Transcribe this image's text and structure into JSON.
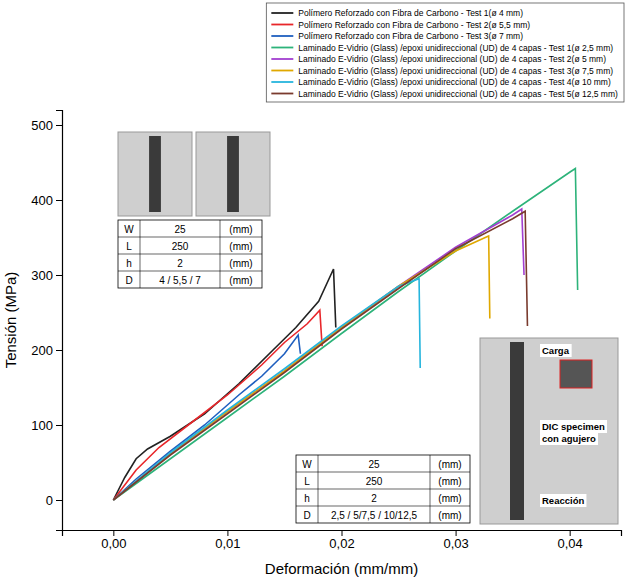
{
  "chart_data": {
    "type": "line",
    "x_label": "Deformación (mm/mm)",
    "y_label": "Tensión (MPa)",
    "xlim": [
      -0.0045,
      0.0445
    ],
    "ylim": [
      -40,
      520
    ],
    "xticks": [
      {
        "value": 0,
        "label": "0,00"
      },
      {
        "value": 0.01,
        "label": "0,01"
      },
      {
        "value": 0.02,
        "label": "0,02"
      },
      {
        "value": 0.03,
        "label": "0,03"
      },
      {
        "value": 0.04,
        "label": "0,04"
      }
    ],
    "yticks": [
      0,
      100,
      200,
      300,
      400,
      500
    ],
    "grid": false,
    "legend": "top right",
    "series": [
      {
        "name": "Polímero Reforzado con Fibra de Carbono - Test 1(ø 4 mm)",
        "color": "#222222",
        "x": [
          0,
          0.001,
          0.002,
          0.003,
          0.005,
          0.008,
          0.011,
          0.014,
          0.016,
          0.018,
          0.0193,
          0.0195
        ],
        "values": [
          0,
          30,
          55,
          68,
          85,
          115,
          155,
          200,
          230,
          265,
          308,
          230
        ]
      },
      {
        "name": "Polímero Reforzado con Fibra de Carbono - Test 2(ø 5,5 mm)",
        "color": "#e8262a",
        "x": [
          0,
          0.002,
          0.004,
          0.007,
          0.01,
          0.013,
          0.015,
          0.017,
          0.0181,
          0.0183
        ],
        "values": [
          0,
          40,
          70,
          105,
          140,
          180,
          210,
          235,
          253,
          205
        ]
      },
      {
        "name": "Polímero Reforzado con Fibra de Carbono - Test 3(ø 7 mm)",
        "color": "#1f5fbf",
        "x": [
          0,
          0.002,
          0.005,
          0.008,
          0.011,
          0.013,
          0.015,
          0.0162,
          0.0164
        ],
        "values": [
          0,
          28,
          65,
          100,
          140,
          165,
          195,
          220,
          195
        ]
      },
      {
        "name": "Laminado E-Vidrio (Glass) /epoxi unidireccional (UD) de 4 capas - Test 1(ø 2,5 mm)",
        "color": "#2db37a",
        "x": [
          0,
          0.005,
          0.01,
          0.015,
          0.02,
          0.025,
          0.03,
          0.035,
          0.04,
          0.0405,
          0.0407
        ],
        "values": [
          0,
          55,
          110,
          165,
          222,
          278,
          332,
          385,
          437,
          442,
          280
        ]
      },
      {
        "name": "Laminado E-Vidrio (Glass) /epoxi unidireccional (UD) de 4 capas - Test 2(ø 5 mm)",
        "color": "#a23fd0",
        "x": [
          0,
          0.005,
          0.01,
          0.015,
          0.02,
          0.025,
          0.03,
          0.035,
          0.0358,
          0.036
        ],
        "values": [
          0,
          62,
          118,
          172,
          230,
          285,
          337,
          380,
          388,
          300
        ]
      },
      {
        "name": "Laminado E-Vidrio (Glass) /epoxi unidireccional (UD) de 4 capas - Test 3(ø 7,5 mm)",
        "color": "#e0a800",
        "x": [
          0,
          0.005,
          0.01,
          0.015,
          0.02,
          0.025,
          0.03,
          0.0326,
          0.0329,
          0.033
        ],
        "values": [
          0,
          62,
          118,
          172,
          230,
          285,
          332,
          350,
          352,
          242
        ]
      },
      {
        "name": "Laminado E-Vidrio (Glass) /epoxi unidireccional (UD) de 4 capas - Test 4(ø 10 mm)",
        "color": "#26b5dd",
        "x": [
          0,
          0.005,
          0.01,
          0.015,
          0.02,
          0.025,
          0.0268,
          0.0269
        ],
        "values": [
          0,
          63,
          120,
          175,
          232,
          285,
          295,
          176
        ]
      },
      {
        "name": "Laminado E-Vidrio (Glass) /epoxi unidireccional (UD) de 4 capas - Test 5(ø 12,5 mm)",
        "color": "#7a3b2e",
        "x": [
          0,
          0.005,
          0.01,
          0.015,
          0.02,
          0.025,
          0.03,
          0.035,
          0.0361,
          0.0363
        ],
        "values": [
          0,
          60,
          115,
          170,
          228,
          282,
          335,
          375,
          385,
          232
        ]
      }
    ],
    "tables": [
      {
        "rows": [
          [
            "W",
            "25",
            "(mm)"
          ],
          [
            "L",
            "250",
            "(mm)"
          ],
          [
            "h",
            "2",
            "(mm)"
          ],
          [
            "D",
            "4 / 5,5 / 7",
            "(mm)"
          ]
        ]
      },
      {
        "rows": [
          [
            "W",
            "25",
            "(mm)"
          ],
          [
            "L",
            "250",
            "(mm)"
          ],
          [
            "h",
            "2",
            "(mm)"
          ],
          [
            "D",
            "2,5 / 5/7,5 / 10/12,5",
            "(mm)"
          ]
        ]
      }
    ],
    "annotations": [
      "Carga",
      "DIC specimen",
      "con agujero",
      "Reacción"
    ]
  }
}
